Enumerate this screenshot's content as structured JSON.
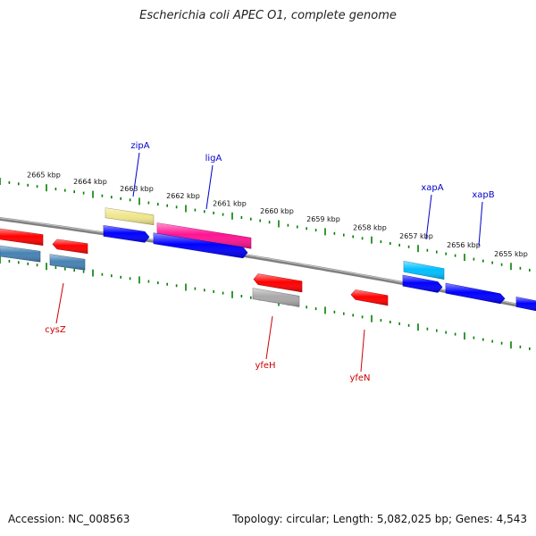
{
  "map": {
    "title": "Escherichia coli APEC O1, complete genome",
    "accession_text": "Accession: NC_008563",
    "summary_text": "Topology: circular; Length: 5,082,025 bp; Genes: 4,543",
    "backbone_color": "#808080",
    "tick_color": "#008000",
    "tick_labels": [
      "2665 kbp",
      "2664 kbp",
      "2663 kbp",
      "2662 kbp",
      "2661 kbp",
      "2660 kbp",
      "2659 kbp",
      "2658 kbp",
      "2657 kbp",
      "2656 kbp",
      "2655 kbp"
    ],
    "outer_features": [
      {
        "name": "zipA-cds",
        "color": "#f0e68c",
        "style": "box"
      },
      {
        "name": "ligA-gene",
        "color": "#ff1493",
        "style": "box"
      },
      {
        "name": "xapA-gene",
        "color": "#00bfff",
        "style": "box"
      },
      {
        "name": "forward-cds-1",
        "color": "#0000ff",
        "style": "arrow-right"
      },
      {
        "name": "forward-cds-2",
        "color": "#0000ff",
        "style": "arrow-right"
      },
      {
        "name": "forward-cds-3",
        "color": "#0000ff",
        "style": "arrow-right"
      },
      {
        "name": "forward-cds-4",
        "color": "#0000ff",
        "style": "arrow-right"
      },
      {
        "name": "forward-cds-5",
        "color": "#0000ff",
        "style": "arrow-right"
      }
    ],
    "inner_features": [
      {
        "name": "reverse-cds-1",
        "color": "#ff0000",
        "style": "arrow-left"
      },
      {
        "name": "reverse-cds-2",
        "color": "#ff0000",
        "style": "arrow-left"
      },
      {
        "name": "cysZ-feature",
        "color": "#4682b4",
        "style": "box"
      },
      {
        "name": "cysZ-feature-2",
        "color": "#4682b4",
        "style": "box"
      },
      {
        "name": "yfeH-cds",
        "color": "#ff0000",
        "style": "arrow-left"
      },
      {
        "name": "yfeH-gene",
        "color": "#a9a9a9",
        "style": "box"
      },
      {
        "name": "yfeN-cds",
        "color": "#ff0000",
        "style": "arrow-left"
      }
    ],
    "gene_labels_top": [
      {
        "text": "zipA",
        "color": "#0000cd"
      },
      {
        "text": "ligA",
        "color": "#0000cd"
      },
      {
        "text": "xapA",
        "color": "#0000cd"
      },
      {
        "text": "xapB",
        "color": "#0000cd"
      }
    ],
    "gene_labels_bottom": [
      {
        "text": "cysZ",
        "color": "#cc0000"
      },
      {
        "text": "yfeH",
        "color": "#cc0000"
      },
      {
        "text": "yfeN",
        "color": "#cc0000"
      }
    ]
  }
}
